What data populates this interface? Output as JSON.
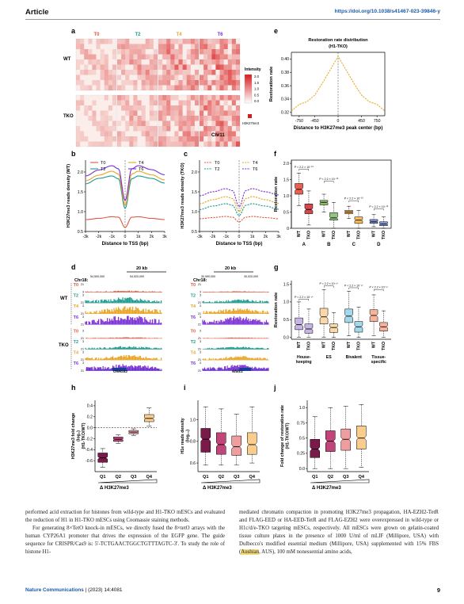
{
  "header": {
    "section": "Article",
    "doi": "https://doi.org/10.1038/s41467-023-39846-y"
  },
  "footer": {
    "journal": "Nature Communications",
    "citation": "| (2023) 14:4081",
    "page": "9"
  },
  "colors": {
    "T0": "#e0573e",
    "T2": "#1b9a8d",
    "T4": "#e8a321",
    "T6": "#7a2ed6",
    "WT": "#1b6fb5",
    "TKO": "#e8781e",
    "heat_max": "#cc1010",
    "doi": "#1a5aa8"
  },
  "panels": {
    "a": {
      "letter": "a",
      "timepoints": [
        "T0",
        "T2",
        "T4",
        "T6"
      ],
      "rows": [
        "WT",
        "TKO"
      ],
      "legend_title": "Intensity",
      "legend_ticks": [
        "2.0",
        "1.5",
        "1.0",
        "0.5",
        "0.0"
      ],
      "mark": "H3K27me3",
      "chrom": "Chr11"
    },
    "b": {
      "letter": "b"
    },
    "c": {
      "letter": "c"
    },
    "d": {
      "letter": "d",
      "chrom_left": "Chr18:",
      "chrom_right": "Chr18:",
      "scale": "20 kb",
      "coords_left": [
        "54,500,000",
        "54,520,000"
      ],
      "coords_right": [
        "30,990,000",
        "30,020,000"
      ],
      "ranges_left": [
        "21",
        "3",
        "3",
        "21",
        "3",
        "21",
        "3",
        "21",
        "3",
        "21",
        "3",
        "21",
        "3",
        "21",
        "3",
        "21",
        "3"
      ],
      "gene_left": "Onecut2",
      "gene_right": "Nfatc1"
    },
    "e": {
      "letter": "e"
    },
    "f": {
      "letter": "f"
    },
    "g": {
      "letter": "g"
    },
    "h": {
      "letter": "h"
    },
    "i": {
      "letter": "i"
    },
    "j": {
      "letter": "j"
    }
  },
  "chart_data": [
    {
      "panel": "b",
      "type": "line",
      "title": "",
      "xlabel": "Distance to TSS (bp)",
      "ylabel": "H3K27me3 reads density (WT)",
      "xlim": [
        -3000,
        3000
      ],
      "ylim": [
        0.5,
        2.3
      ],
      "x_ticks": [
        "-3k",
        "-2k",
        "-1k",
        "0",
        "1k",
        "2k",
        "3k"
      ],
      "y_ticks": [
        "0.5",
        "1.0",
        "1.5",
        "2.0"
      ],
      "x": [
        -3000,
        -2000,
        -1000,
        -500,
        0,
        500,
        1000,
        2000,
        3000
      ],
      "series": [
        {
          "name": "T0",
          "values": [
            0.8,
            0.83,
            0.87,
            0.86,
            0.6,
            0.86,
            0.87,
            0.83,
            0.8
          ]
        },
        {
          "name": "T2",
          "values": [
            1.7,
            1.84,
            1.9,
            1.83,
            1.08,
            1.83,
            1.9,
            1.84,
            1.72
          ]
        },
        {
          "name": "T4",
          "values": [
            1.78,
            1.92,
            2.02,
            1.95,
            1.16,
            1.95,
            2.02,
            1.93,
            1.8
          ]
        },
        {
          "name": "T6",
          "values": [
            1.9,
            2.05,
            2.16,
            2.08,
            1.28,
            2.08,
            2.16,
            2.06,
            1.93
          ]
        }
      ]
    },
    {
      "panel": "c",
      "type": "line",
      "title": "",
      "xlabel": "Distance to TSS (bp)",
      "ylabel": "H3K27me3 reads density (TKO)",
      "xlim": [
        -3000,
        3000
      ],
      "ylim": [
        0.5,
        2.3
      ],
      "x_ticks": [
        "-3k",
        "-2k",
        "-1k",
        "0",
        "1k",
        "2k",
        "3k"
      ],
      "y_ticks": [
        "0.5",
        "1.0",
        "1.5",
        "2.0"
      ],
      "x": [
        -3000,
        -2000,
        -1000,
        -500,
        0,
        500,
        1000,
        2000,
        3000
      ],
      "series": [
        {
          "name": "T0",
          "values": [
            0.82,
            0.85,
            0.88,
            0.86,
            0.74,
            0.86,
            0.88,
            0.85,
            0.82
          ]
        },
        {
          "name": "T2",
          "values": [
            1.05,
            1.14,
            1.2,
            1.16,
            0.9,
            1.16,
            1.2,
            1.14,
            1.06
          ]
        },
        {
          "name": "T4",
          "values": [
            1.2,
            1.3,
            1.38,
            1.33,
            1.0,
            1.33,
            1.38,
            1.3,
            1.21
          ]
        },
        {
          "name": "T6",
          "values": [
            1.4,
            1.5,
            1.58,
            1.53,
            1.12,
            1.53,
            1.58,
            1.5,
            1.42
          ]
        }
      ]
    },
    {
      "panel": "e",
      "type": "line",
      "title": "Restoration rate distribution",
      "subtitle": "(H1-TKO)",
      "xlabel": "Distance to H3K27me3 peak center (bp)",
      "ylabel": "Restoration rate",
      "xlim": [
        -900,
        900
      ],
      "ylim": [
        0.315,
        0.41
      ],
      "x_ticks": [
        "-750",
        "-450",
        "0",
        "450",
        "750"
      ],
      "y_ticks": [
        "0.32",
        "0.34",
        "0.36",
        "0.38",
        "0.40"
      ],
      "x": [
        -900,
        -750,
        -600,
        -450,
        -300,
        -150,
        0,
        150,
        300,
        450,
        600,
        750,
        900
      ],
      "series": [
        {
          "values": [
            0.322,
            0.332,
            0.336,
            0.346,
            0.364,
            0.384,
            0.404,
            0.384,
            0.364,
            0.346,
            0.336,
            0.332,
            0.322
          ]
        }
      ]
    },
    {
      "panel": "f",
      "type": "box",
      "ylabel": "Restoration rate",
      "ylim": [
        0,
        2.1
      ],
      "y_ticks": [
        "0",
        "0.5",
        "1.0",
        "1.5",
        "2.0"
      ],
      "groups": [
        "A",
        "B",
        "C",
        "D"
      ],
      "box_labels": [
        "WT",
        "TKO"
      ],
      "pvalues": [
        "P < 2.2 × 10⁻¹⁶",
        "P < 2.2 × 10⁻¹⁶",
        "P < 2.2 × 10⁻¹⁶",
        "P < 2.2 × 10⁻¹⁶"
      ],
      "boxes": [
        {
          "group": "A",
          "label": "WT",
          "min": 0.7,
          "q1": 1.05,
          "median": 1.2,
          "q3": 1.38,
          "max": 1.7,
          "color": "#e95f50"
        },
        {
          "group": "A",
          "label": "TKO",
          "min": 0.1,
          "q1": 0.45,
          "median": 0.58,
          "q3": 0.75,
          "max": 1.15,
          "color": "#d2484c"
        },
        {
          "group": "B",
          "label": "WT",
          "min": 0.5,
          "q1": 0.72,
          "median": 0.8,
          "q3": 0.86,
          "max": 1.05,
          "color": "#8fbf6a"
        },
        {
          "group": "B",
          "label": "TKO",
          "min": 0.0,
          "q1": 0.25,
          "median": 0.32,
          "q3": 0.48,
          "max": 0.8,
          "color": "#93c57f"
        },
        {
          "group": "C",
          "label": "WT",
          "min": 0.3,
          "q1": 0.45,
          "median": 0.5,
          "q3": 0.55,
          "max": 0.68,
          "color": "#f2a94c"
        },
        {
          "group": "C",
          "label": "TKO",
          "min": 0.0,
          "q1": 0.15,
          "median": 0.25,
          "q3": 0.35,
          "max": 0.55,
          "color": "#f6bc62"
        },
        {
          "group": "D",
          "label": "WT",
          "min": 0.05,
          "q1": 0.15,
          "median": 0.2,
          "q3": 0.27,
          "max": 0.42,
          "color": "#7f8fd8"
        },
        {
          "group": "D",
          "label": "TKO",
          "min": 0.0,
          "q1": 0.08,
          "median": 0.13,
          "q3": 0.2,
          "max": 0.35,
          "color": "#8a98db"
        }
      ]
    },
    {
      "panel": "g",
      "type": "box",
      "ylabel": "Restoration rate",
      "ylim": [
        -0.05,
        1.6
      ],
      "y_ticks": [
        "0.0",
        "0.5",
        "1.0",
        "1.5"
      ],
      "groups": [
        "House-keeping",
        "ES",
        "Bivalent",
        "Tissue-specific"
      ],
      "box_labels": [
        "WT",
        "TKO"
      ],
      "pvalues": [
        "P < 2.2 × 10⁻¹⁶",
        "P < 2.2 × 10⁻¹⁶",
        "P < 2.2 × 10⁻¹⁶",
        "P < 2.2 × 10⁻¹⁶"
      ],
      "boxes": [
        {
          "group": "House-keeping",
          "label": "WT",
          "min": 0.0,
          "q1": 0.22,
          "median": 0.36,
          "q3": 0.55,
          "max": 1.0,
          "color": "#c7b5e6"
        },
        {
          "group": "House-keeping",
          "label": "TKO",
          "min": 0.0,
          "q1": 0.12,
          "median": 0.24,
          "q3": 0.38,
          "max": 0.8,
          "color": "#c7b5e6"
        },
        {
          "group": "ES",
          "label": "WT",
          "min": 0.0,
          "q1": 0.38,
          "median": 0.58,
          "q3": 0.82,
          "max": 1.35,
          "color": "#fbd8a8"
        },
        {
          "group": "ES",
          "label": "TKO",
          "min": 0.0,
          "q1": 0.14,
          "median": 0.28,
          "q3": 0.38,
          "max": 0.7,
          "color": "#fbd8a8"
        },
        {
          "group": "Bivalent",
          "label": "WT",
          "min": 0.05,
          "q1": 0.42,
          "median": 0.6,
          "q3": 0.8,
          "max": 1.3,
          "color": "#a3d9ea"
        },
        {
          "group": "Bivalent",
          "label": "TKO",
          "min": 0.0,
          "q1": 0.15,
          "median": 0.3,
          "q3": 0.45,
          "max": 0.85,
          "color": "#a3d9ea"
        },
        {
          "group": "Tissue-specific",
          "label": "WT",
          "min": 0.05,
          "q1": 0.45,
          "median": 0.62,
          "q3": 0.78,
          "max": 1.2,
          "color": "#f7b39b"
        },
        {
          "group": "Tissue-specific",
          "label": "TKO",
          "min": 0.0,
          "q1": 0.18,
          "median": 0.3,
          "q3": 0.42,
          "max": 0.75,
          "color": "#f7b39b"
        }
      ]
    },
    {
      "panel": "h",
      "type": "box",
      "ylabel": "H3K27me3 fold change (log₂) (H1-TKO/WT)",
      "xlabel": "H3K27me3",
      "ylim": [
        -0.8,
        0.5
      ],
      "y_ticks": [
        "-0.6",
        "-0.4",
        "-0.2",
        "0.0",
        "0.2",
        "0.4"
      ],
      "categories": [
        "Q1",
        "Q2",
        "Q3",
        "Q4"
      ],
      "reference_line": 0,
      "boxes": [
        {
          "label": "Q1",
          "min": -0.72,
          "q1": -0.63,
          "median": -0.55,
          "q3": -0.46,
          "max": -0.38,
          "color": "#7a1a4b"
        },
        {
          "label": "Q2",
          "min": -0.29,
          "q1": -0.25,
          "median": -0.21,
          "q3": -0.17,
          "max": -0.13,
          "color": "#c2457a"
        },
        {
          "label": "Q3",
          "min": -0.14,
          "q1": -0.11,
          "median": -0.08,
          "q3": -0.05,
          "max": -0.02,
          "color": "#ef9ea0"
        },
        {
          "label": "Q4",
          "min": 0.03,
          "q1": 0.11,
          "median": 0.17,
          "q3": 0.24,
          "max": 0.36,
          "color": "#f8cd8e"
        }
      ]
    },
    {
      "panel": "i",
      "type": "box",
      "ylabel": "H1e reads density (log₁₀)",
      "xlabel": "H3K27me3",
      "ylim": [
        0.52,
        1.18
      ],
      "y_ticks": [
        "0.6",
        "0.8",
        "1.0"
      ],
      "categories": [
        "Q1",
        "Q2",
        "Q3",
        "Q4"
      ],
      "boxes": [
        {
          "label": "Q1",
          "min": 0.58,
          "q1": 0.7,
          "median": 0.82,
          "q3": 0.92,
          "max": 1.12,
          "color": "#7a1a4b"
        },
        {
          "label": "Q2",
          "min": 0.58,
          "q1": 0.68,
          "median": 0.77,
          "q3": 0.88,
          "max": 1.1,
          "color": "#c2457a"
        },
        {
          "label": "Q3",
          "min": 0.58,
          "q1": 0.67,
          "median": 0.75,
          "q3": 0.85,
          "max": 1.05,
          "color": "#ef9ea0"
        },
        {
          "label": "Q4",
          "min": 0.6,
          "q1": 0.68,
          "median": 0.77,
          "q3": 0.88,
          "max": 1.12,
          "color": "#f8cd8e"
        }
      ]
    },
    {
      "panel": "j",
      "type": "box",
      "ylabel": "Fold change of restoration rate (H1-TKO/WT)",
      "xlabel": "H3K27me3",
      "ylim": [
        -0.05,
        1.12
      ],
      "y_ticks": [
        "0.0",
        "0.25",
        "0.5",
        "0.75",
        "1.0"
      ],
      "categories": [
        "Q1",
        "Q2",
        "Q3",
        "Q4"
      ],
      "boxes": [
        {
          "label": "Q1",
          "min": 0.0,
          "q1": 0.18,
          "median": 0.32,
          "q3": 0.48,
          "max": 0.85,
          "color": "#7a1a4b"
        },
        {
          "label": "Q2",
          "min": 0.0,
          "q1": 0.28,
          "median": 0.45,
          "q3": 0.62,
          "max": 1.0,
          "color": "#c2457a"
        },
        {
          "label": "Q3",
          "min": 0.0,
          "q1": 0.3,
          "median": 0.48,
          "q3": 0.65,
          "max": 1.02,
          "color": "#ef9ea0"
        },
        {
          "label": "Q4",
          "min": 0.02,
          "q1": 0.32,
          "median": 0.5,
          "q3": 0.7,
          "max": 1.05,
          "color": "#f8cd8e"
        }
      ]
    }
  ],
  "body": {
    "left": [
      "performed acid extraction for histones from wild-type and H1-TKO mESCs and evaluated the reduction of H1 in H1-TKO mESCs using Coomassie staining methods.",
      "For generating 8×TetO knock-in mESCs, we directly fused the 8×tetO arrays with the human CYP26A1 promoter that drives the expression of the EGFP gene. The guide sequence for CRISPR/Cas9 is: 5'-TCTGAACTGGCTGTTTAGTC-3'. To study the role of histone H1-"
    ],
    "right": [
      "mediated chromatin compaction in promoting H3K27me3 propagation, HA-EZH2-TetR and FLAG-EED or HA-EED-TetR and FLAG-EZH2 were overexpressed in wild-type or H1c/d/e-TKO targeting mESCs, respectively. All mESCs were grown on gelatin-coated tissue culture plates in the presence of 1000 U/ml of mLIF (Millipore, USA) with Dulbecco's modified essential medium (Millipore, USA) supplemented with 15% FBS (",
      "Aushian",
      ", AUS), 100 mM nonessential amino acids,"
    ]
  }
}
